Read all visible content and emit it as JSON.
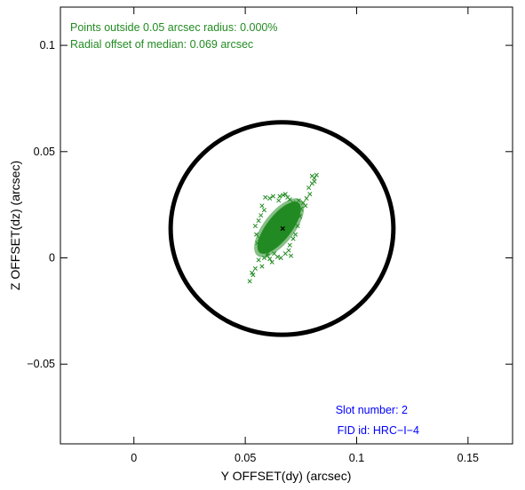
{
  "chart_data": {
    "type": "scatter",
    "title": "",
    "xlabel": "Y OFFSET(dy) (arcsec)",
    "ylabel": "Z OFFSET(dz) (arcsec)",
    "xlim": [
      -0.033,
      0.17
    ],
    "ylim": [
      -0.0875,
      0.118
    ],
    "xticks": [
      0,
      0.05,
      0.1,
      0.15
    ],
    "xtick_labels": [
      "0",
      "0.05",
      "0.1",
      "0.15"
    ],
    "yticks": [
      -0.05,
      0,
      0.05,
      0.1
    ],
    "ytick_labels": [
      "−0.05",
      "0",
      "0.05",
      "0.1"
    ],
    "grid": false,
    "annotations": {
      "points_outside": "Points outside 0.05 arcsec radius: 0.000%",
      "median_offset": "Radial offset of median: 0.069 arcsec",
      "slot_number": "Slot number: 2",
      "fid_id": "FID id: HRC−I−4"
    },
    "circle": {
      "center": [
        0.0665,
        0.0138
      ],
      "radius": 0.05
    },
    "median": {
      "x": 0.0668,
      "y": 0.0138
    },
    "cluster": {
      "center": [
        0.0652,
        0.0142
      ],
      "semi_major": 0.0142,
      "semi_minor": 0.0058,
      "angle_deg": 52
    },
    "series": [
      {
        "marker": "x",
        "points": [
          [
            0.058,
            0.005
          ],
          [
            0.056,
            -0.001
          ],
          [
            0.0575,
            -0.004
          ],
          [
            0.053,
            -0.007
          ],
          [
            0.052,
            -0.011
          ],
          [
            0.0535,
            -0.008
          ],
          [
            0.06,
            0.001
          ],
          [
            0.0545,
            -0.005
          ],
          [
            0.082,
            0.039
          ],
          [
            0.081,
            0.0375
          ],
          [
            0.08,
            0.035
          ],
          [
            0.0785,
            0.033
          ],
          [
            0.079,
            0.03
          ],
          [
            0.0775,
            0.028
          ],
          [
            0.076,
            0.026
          ],
          [
            0.077,
            0.0245
          ],
          [
            0.081,
            0.036
          ],
          [
            0.08,
            0.0385
          ],
          [
            0.075,
            0.023
          ],
          [
            0.074,
            0.021
          ],
          [
            0.0735,
            0.0245
          ],
          [
            0.0725,
            0.0255
          ],
          [
            0.074,
            0.027
          ],
          [
            0.0745,
            0.0195
          ],
          [
            0.0655,
            0.029
          ],
          [
            0.067,
            0.0295
          ],
          [
            0.0625,
            0.029
          ],
          [
            0.061,
            0.028
          ],
          [
            0.059,
            0.0285
          ],
          [
            0.065,
            0.027
          ],
          [
            0.069,
            0.0285
          ],
          [
            0.068,
            0.03
          ],
          [
            0.0555,
            0.007
          ],
          [
            0.0565,
            0.009
          ],
          [
            0.055,
            0.011
          ],
          [
            0.0545,
            0.015
          ],
          [
            0.056,
            0.0175
          ],
          [
            0.057,
            0.02
          ],
          [
            0.0585,
            0.0225
          ],
          [
            0.0575,
            0.0245
          ],
          [
            0.07,
            0.006
          ],
          [
            0.0715,
            0.009
          ],
          [
            0.0725,
            0.011
          ],
          [
            0.0735,
            0.015
          ],
          [
            0.062,
            -0.002
          ],
          [
            0.061,
            -0.0005
          ],
          [
            0.059,
            0.003
          ],
          [
            0.063,
            0.002
          ],
          [
            0.068,
            0.002
          ],
          [
            0.0695,
            0.0035
          ],
          [
            0.0705,
            0.001
          ],
          [
            0.066,
            0.0
          ],
          [
            0.0645,
            0.0005
          ],
          [
            0.0615,
            0.005
          ],
          [
            0.06,
            0.002
          ],
          [
            0.0585,
            0.0
          ],
          [
            0.072,
            0.019
          ],
          [
            0.073,
            0.023
          ],
          [
            0.0715,
            0.026
          ],
          [
            0.07,
            0.0275
          ]
        ]
      }
    ]
  }
}
